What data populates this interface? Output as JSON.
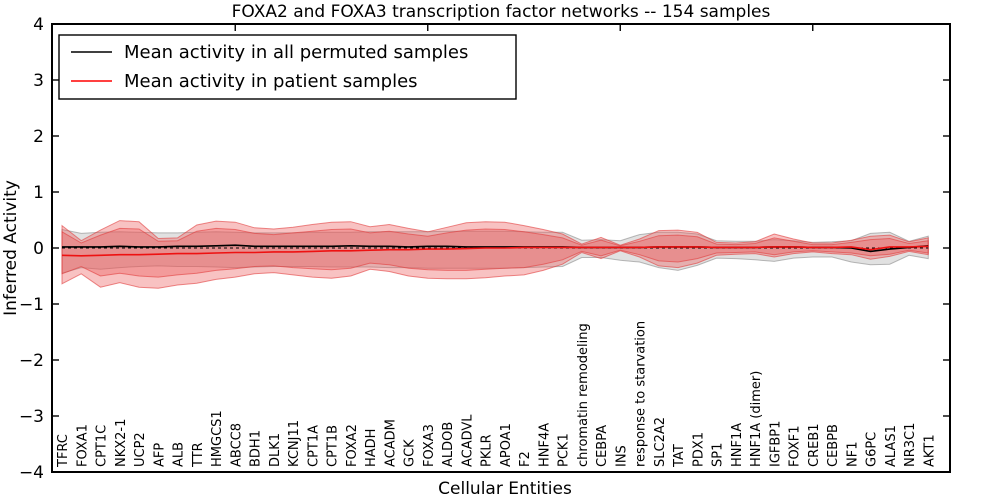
{
  "title": "FOXA2 and FOXA3 transcription factor networks -- 154 samples",
  "axes": {
    "ylabel": "Inferred Activity",
    "xlabel": "Cellular Entities",
    "yticks": [
      "4",
      "3",
      "2",
      "1",
      "0",
      "−1",
      "−2",
      "−3",
      "−4"
    ],
    "ytick_values": [
      4,
      3,
      2,
      1,
      0,
      -1,
      -2,
      -3,
      -4
    ],
    "ylim": [
      -4,
      4
    ]
  },
  "legend": {
    "items": [
      {
        "label": "Mean activity in all permuted samples",
        "color": "#000000"
      },
      {
        "label": "Mean activity in patient samples",
        "color": "#ff0000"
      }
    ]
  },
  "colors": {
    "frame": "#000000",
    "permuted_line": "#000000",
    "patient_line": "#ee1111",
    "gray_band_fill": "rgba(200,200,200,0.55)",
    "gray_band_edge": "rgba(130,130,130,0.55)",
    "red_band_fill": "rgba(235,85,85,0.36)",
    "red_band_edge": "rgba(225,60,60,0.6)",
    "background": "#ffffff"
  },
  "chart_data": {
    "type": "line",
    "title": "FOXA2 and FOXA3 transcription factor networks -- 154 samples",
    "xlabel": "Cellular Entities",
    "ylabel": "Inferred Activity",
    "ylim": [
      -4,
      4
    ],
    "grid": false,
    "legend_position": "upper left",
    "categories": [
      "TFRC",
      "FOXA1",
      "CPT1C",
      "NKX2-1",
      "UCP2",
      "AFP",
      "ALB",
      "TTR",
      "HMGCS1",
      "ABCC8",
      "BDH1",
      "DLK1",
      "KCNJ11",
      "CPT1A",
      "CPT1B",
      "FOXA2",
      "HADH",
      "ACADM",
      "GCK",
      "FOXA3",
      "ALDOB",
      "ACADVL",
      "PKLR",
      "APOA1",
      "F2",
      "HNF4A",
      "PCK1",
      "chromatin remodeling",
      "CEBPA",
      "INS",
      "response to starvation",
      "SLC2A2",
      "TAT",
      "PDX1",
      "SP1",
      "HNF1A",
      "HNF1A (dimer)",
      "IGFBP1",
      "FOXF1",
      "CREB1",
      "CEBPB",
      "NF1",
      "G6PC",
      "ALAS1",
      "NR3C1",
      "AKT1"
    ],
    "series": [
      {
        "name": "Mean activity in all permuted samples",
        "color": "#000000",
        "style": "solid",
        "values": [
          0.02,
          0.02,
          0.02,
          0.03,
          0.02,
          0.02,
          0.03,
          0.03,
          0.04,
          0.05,
          0.03,
          0.03,
          0.03,
          0.03,
          0.03,
          0.04,
          0.03,
          0.03,
          0.02,
          0.03,
          0.03,
          0.02,
          0.02,
          0.02,
          0.02,
          0.02,
          0.02,
          0.01,
          0.01,
          0.01,
          0.01,
          0.02,
          0.02,
          0.02,
          0.01,
          0.01,
          0.01,
          0.02,
          0.02,
          0.01,
          0.01,
          0.0,
          -0.06,
          -0.02,
          0.01,
          0.04
        ]
      },
      {
        "name": "Mean activity in patient samples",
        "color": "#ee1111",
        "style": "solid",
        "values": [
          -0.13,
          -0.14,
          -0.13,
          -0.12,
          -0.12,
          -0.11,
          -0.1,
          -0.1,
          -0.09,
          -0.08,
          -0.08,
          -0.07,
          -0.07,
          -0.06,
          -0.05,
          -0.05,
          -0.04,
          -0.03,
          -0.03,
          -0.02,
          -0.02,
          -0.01,
          0.0,
          0.0,
          0.01,
          0.01,
          0.01,
          0.01,
          0.01,
          0.01,
          0.01,
          0.02,
          0.02,
          0.02,
          0.01,
          0.01,
          0.01,
          0.02,
          0.02,
          0.01,
          0.01,
          0.02,
          -0.03,
          0.02,
          0.02,
          0.03
        ]
      },
      {
        "name": "permuted baseline (dashed)",
        "color": "#000000",
        "style": "dashed",
        "values": [
          0,
          0,
          0,
          0,
          0,
          0,
          0,
          0,
          0,
          0,
          0,
          0,
          0,
          0,
          0,
          0,
          0,
          0,
          0,
          0,
          0,
          0,
          0,
          0,
          0,
          0,
          0,
          0,
          0,
          0,
          0,
          0,
          0,
          0,
          0,
          0,
          0,
          0,
          0,
          0,
          0,
          0,
          0,
          0,
          0,
          0
        ]
      }
    ],
    "bands": [
      {
        "name": "permuted samples range",
        "fill": "rgba(200,200,200,0.55)",
        "edge": "rgba(130,130,130,0.55)",
        "upper": [
          0.33,
          0.26,
          0.28,
          0.29,
          0.28,
          0.27,
          0.27,
          0.28,
          0.29,
          0.28,
          0.27,
          0.27,
          0.27,
          0.28,
          0.28,
          0.28,
          0.29,
          0.29,
          0.29,
          0.29,
          0.3,
          0.3,
          0.3,
          0.3,
          0.29,
          0.28,
          0.28,
          0.14,
          0.15,
          0.13,
          0.24,
          0.28,
          0.28,
          0.25,
          0.13,
          0.12,
          0.12,
          0.15,
          0.13,
          0.1,
          0.11,
          0.13,
          0.26,
          0.28,
          0.12,
          0.21
        ],
        "lower": [
          -0.45,
          -0.35,
          -0.38,
          -0.35,
          -0.33,
          -0.32,
          -0.33,
          -0.33,
          -0.34,
          -0.35,
          -0.34,
          -0.33,
          -0.33,
          -0.33,
          -0.34,
          -0.34,
          -0.34,
          -0.35,
          -0.35,
          -0.36,
          -0.36,
          -0.36,
          -0.36,
          -0.36,
          -0.35,
          -0.34,
          -0.33,
          -0.17,
          -0.17,
          -0.22,
          -0.25,
          -0.35,
          -0.4,
          -0.31,
          -0.18,
          -0.19,
          -0.21,
          -0.24,
          -0.18,
          -0.16,
          -0.16,
          -0.25,
          -0.3,
          -0.29,
          -0.13,
          -0.19
        ]
      },
      {
        "name": "patient samples outer band",
        "fill": "rgba(235,85,85,0.36)",
        "edge": "rgba(225,60,60,0.6)",
        "upper": [
          0.4,
          0.13,
          0.32,
          0.49,
          0.47,
          0.17,
          0.18,
          0.41,
          0.48,
          0.46,
          0.36,
          0.34,
          0.37,
          0.42,
          0.46,
          0.47,
          0.38,
          0.42,
          0.35,
          0.29,
          0.37,
          0.45,
          0.47,
          0.46,
          0.4,
          0.33,
          0.25,
          0.07,
          0.19,
          0.05,
          0.16,
          0.31,
          0.32,
          0.28,
          0.1,
          0.09,
          0.11,
          0.25,
          0.16,
          0.09,
          0.09,
          0.14,
          0.21,
          0.23,
          0.11,
          0.18
        ],
        "lower": [
          -0.64,
          -0.46,
          -0.7,
          -0.62,
          -0.7,
          -0.72,
          -0.66,
          -0.63,
          -0.56,
          -0.52,
          -0.46,
          -0.44,
          -0.48,
          -0.52,
          -0.54,
          -0.5,
          -0.38,
          -0.42,
          -0.5,
          -0.54,
          -0.55,
          -0.55,
          -0.53,
          -0.5,
          -0.48,
          -0.4,
          -0.29,
          -0.08,
          -0.19,
          -0.05,
          -0.16,
          -0.32,
          -0.35,
          -0.27,
          -0.13,
          -0.11,
          -0.1,
          -0.16,
          -0.1,
          -0.07,
          -0.1,
          -0.12,
          -0.2,
          -0.15,
          -0.06,
          -0.12
        ]
      },
      {
        "name": "patient samples inner band",
        "fill": "rgba(235,85,85,0.36)",
        "edge": "rgba(225,60,60,0.6)",
        "upper": [
          0.29,
          0.09,
          0.23,
          0.35,
          0.34,
          0.12,
          0.13,
          0.3,
          0.35,
          0.33,
          0.26,
          0.24,
          0.27,
          0.3,
          0.33,
          0.34,
          0.27,
          0.3,
          0.25,
          0.21,
          0.27,
          0.32,
          0.34,
          0.33,
          0.29,
          0.24,
          0.18,
          0.05,
          0.14,
          0.04,
          0.12,
          0.22,
          0.23,
          0.2,
          0.07,
          0.06,
          0.08,
          0.18,
          0.12,
          0.06,
          0.06,
          0.1,
          0.15,
          0.17,
          0.08,
          0.13
        ],
        "lower": [
          -0.46,
          -0.33,
          -0.5,
          -0.45,
          -0.5,
          -0.52,
          -0.48,
          -0.45,
          -0.4,
          -0.37,
          -0.33,
          -0.32,
          -0.35,
          -0.37,
          -0.39,
          -0.36,
          -0.27,
          -0.3,
          -0.36,
          -0.39,
          -0.4,
          -0.4,
          -0.38,
          -0.36,
          -0.35,
          -0.29,
          -0.21,
          -0.06,
          -0.14,
          -0.04,
          -0.12,
          -0.23,
          -0.25,
          -0.19,
          -0.09,
          -0.08,
          -0.07,
          -0.12,
          -0.07,
          -0.05,
          -0.07,
          -0.09,
          -0.14,
          -0.11,
          -0.04,
          -0.09
        ]
      }
    ]
  }
}
